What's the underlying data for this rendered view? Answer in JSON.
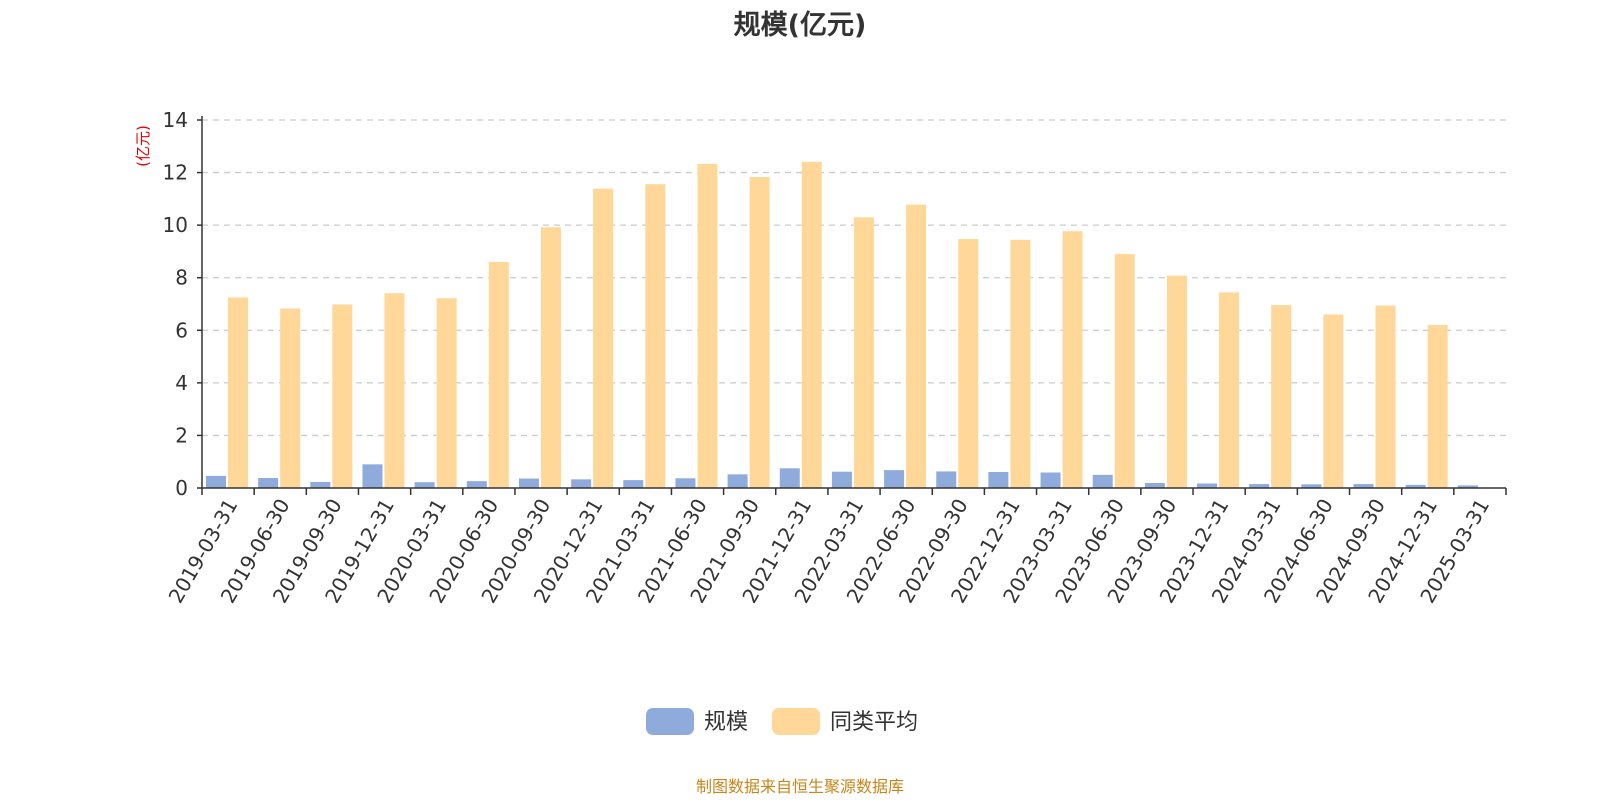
{
  "chart_data": {
    "type": "bar",
    "title": "规模(亿元)",
    "ylabel": "(亿元)",
    "xlabel": "",
    "ylim": [
      0,
      14
    ],
    "yticks": [
      0,
      2,
      4,
      6,
      8,
      10,
      12,
      14
    ],
    "grid": true,
    "legend_position": "bottom",
    "categories": [
      "2019-03-31",
      "2019-06-30",
      "2019-09-30",
      "2019-12-31",
      "2020-03-31",
      "2020-06-30",
      "2020-09-30",
      "2020-12-31",
      "2021-03-31",
      "2021-06-30",
      "2021-09-30",
      "2021-12-31",
      "2022-03-31",
      "2022-06-30",
      "2022-09-30",
      "2022-12-31",
      "2023-03-31",
      "2023-06-30",
      "2023-09-30",
      "2023-12-31",
      "2024-03-31",
      "2024-06-30",
      "2024-09-30",
      "2024-12-31",
      "2025-03-31"
    ],
    "series": [
      {
        "name": "规模",
        "color": "#8eabdb",
        "values": [
          0.46,
          0.38,
          0.23,
          0.9,
          0.22,
          0.26,
          0.36,
          0.33,
          0.3,
          0.37,
          0.52,
          0.75,
          0.62,
          0.68,
          0.63,
          0.61,
          0.59,
          0.5,
          0.19,
          0.17,
          0.15,
          0.14,
          0.15,
          0.12,
          0.1
        ]
      },
      {
        "name": "同类平均",
        "color": "#ffd899",
        "values": [
          7.25,
          6.83,
          6.98,
          7.41,
          7.22,
          8.6,
          9.92,
          11.39,
          11.56,
          12.33,
          11.83,
          12.41,
          10.3,
          10.78,
          9.47,
          9.44,
          9.77,
          8.9,
          8.08,
          7.44,
          6.96,
          6.6,
          6.94,
          6.2,
          null
        ]
      }
    ]
  },
  "source_note": "制图数据来自恒生聚源数据库"
}
